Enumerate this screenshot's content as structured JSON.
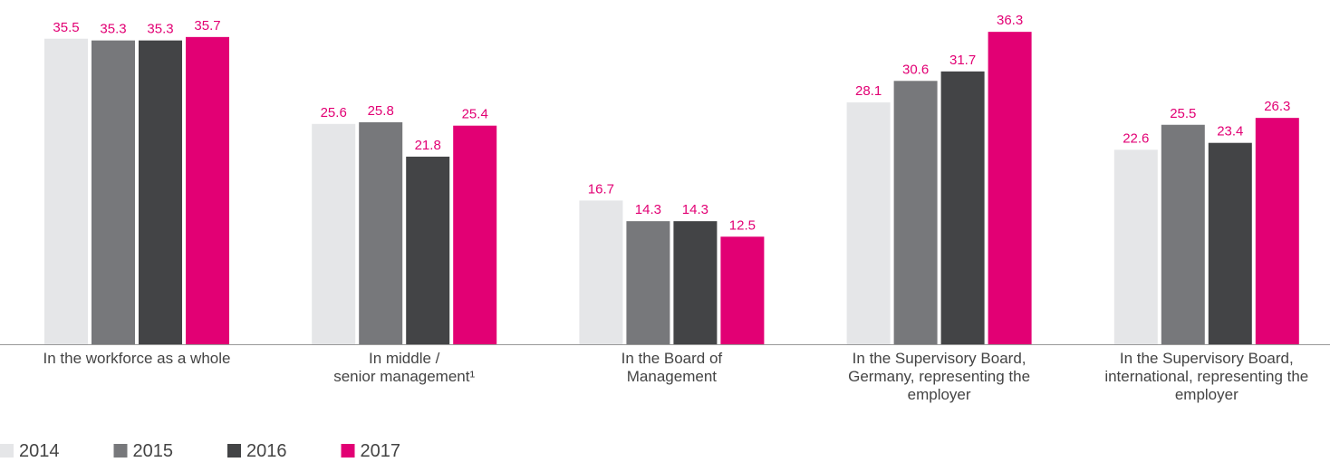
{
  "chart_data": {
    "type": "bar",
    "categories": [
      "In the workforce as a whole",
      "In middle /\nsenior management¹",
      "In the Board of\nManagement",
      "In the Supervisory Board,\nGermany, representing the\nemployer",
      "In the Supervisory Board,\ninternational, representing the\nemployer"
    ],
    "series": [
      {
        "name": "2014",
        "color": "#e5e6e8",
        "values": [
          35.5,
          25.6,
          16.7,
          28.1,
          22.6
        ]
      },
      {
        "name": "2015",
        "color": "#77787b",
        "values": [
          35.3,
          25.8,
          14.3,
          30.6,
          25.5
        ]
      },
      {
        "name": "2016",
        "color": "#434446",
        "values": [
          35.3,
          21.8,
          14.3,
          31.7,
          23.4
        ]
      },
      {
        "name": "2017",
        "color": "#e20074",
        "values": [
          35.7,
          25.4,
          12.5,
          36.3,
          26.3
        ]
      }
    ],
    "ylim": [
      0,
      40
    ],
    "label_color": "#e20074"
  }
}
